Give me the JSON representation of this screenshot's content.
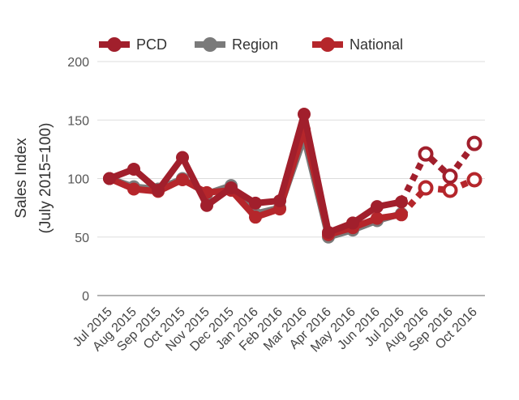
{
  "chart_data": {
    "type": "line",
    "title": "",
    "xlabel": "",
    "ylabel_lines": [
      "Sales Index",
      "(July 2015=100)"
    ],
    "ylim": [
      0,
      200
    ],
    "yticks": [
      0,
      50,
      100,
      150,
      200
    ],
    "grid": true,
    "legend_position": "top",
    "categories": [
      "Jul 2015",
      "Aug 2015",
      "Sep 2015",
      "Oct 2015",
      "Nov 2015",
      "Dec 2015",
      "Jan 2016",
      "Feb 2016",
      "Mar 2016",
      "Apr 2016",
      "May 2016",
      "Jun 2016",
      "Jul 2016",
      "Aug 2016",
      "Sep 2016",
      "Oct 2016"
    ],
    "series": [
      {
        "name": "Region",
        "color": "#7a7a7a",
        "values": [
          100,
          93,
          91,
          100,
          87,
          94,
          70,
          75,
          135,
          50,
          56,
          64,
          70,
          null,
          null,
          null
        ],
        "projected": [
          null,
          null,
          null,
          null,
          null,
          null,
          null,
          null,
          null,
          null,
          null,
          null,
          null,
          null,
          null,
          null
        ]
      },
      {
        "name": "National",
        "color": "#b5262b",
        "values": [
          100,
          91,
          89,
          99,
          88,
          90,
          67,
          74,
          142,
          52,
          58,
          66,
          69,
          null,
          null,
          null
        ],
        "projected": [
          null,
          null,
          null,
          null,
          null,
          null,
          null,
          null,
          null,
          null,
          null,
          null,
          69,
          92,
          90,
          99
        ]
      },
      {
        "name": "PCD",
        "color": "#a11f2c",
        "values": [
          100,
          108,
          90,
          118,
          77,
          92,
          79,
          81,
          155,
          54,
          62,
          76,
          80,
          null,
          null,
          null
        ],
        "projected": [
          null,
          null,
          null,
          null,
          null,
          null,
          null,
          null,
          null,
          null,
          null,
          null,
          80,
          121,
          102,
          130
        ]
      }
    ],
    "legend_order": [
      "PCD",
      "Region",
      "National"
    ]
  }
}
